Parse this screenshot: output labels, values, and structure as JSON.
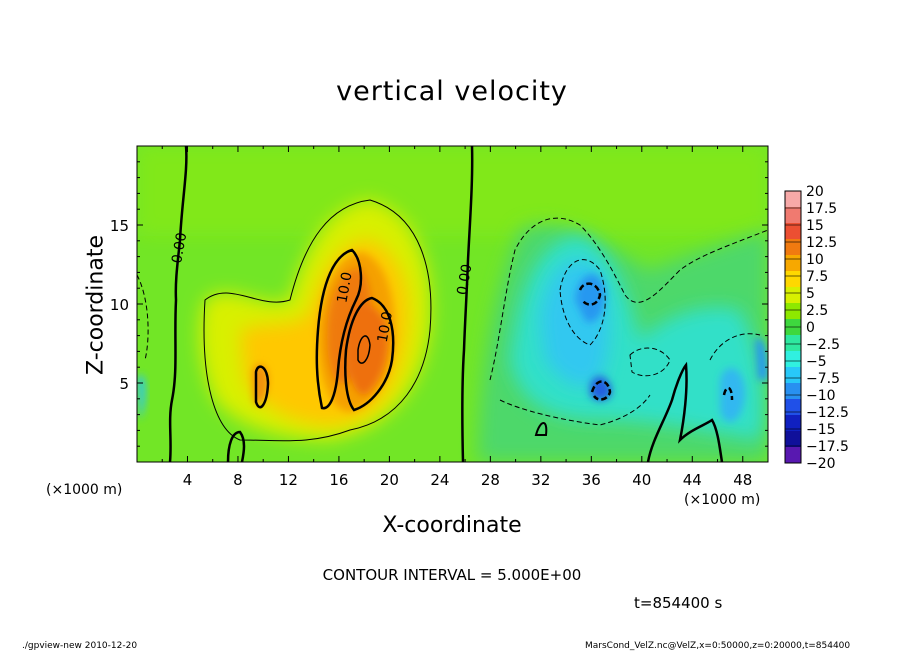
{
  "chart_data": {
    "type": "heatmap",
    "title": "vertical velocity",
    "xlabel": "X-coordinate",
    "ylabel": "Z-coordinate",
    "x_unit_left": "(×1000 m)",
    "x_unit_right": "(×1000 m)",
    "xlim": [
      0,
      50
    ],
    "ylim": [
      0,
      20
    ],
    "x_ticks": [
      {
        "value": 4,
        "label": "4"
      },
      {
        "value": 8,
        "label": "8"
      },
      {
        "value": 12,
        "label": "12"
      },
      {
        "value": 16,
        "label": "16"
      },
      {
        "value": 20,
        "label": "20"
      },
      {
        "value": 24,
        "label": "24"
      },
      {
        "value": 28,
        "label": "28"
      },
      {
        "value": 32,
        "label": "32"
      },
      {
        "value": 36,
        "label": "36"
      },
      {
        "value": 40,
        "label": "40"
      },
      {
        "value": 44,
        "label": "44"
      },
      {
        "value": 48,
        "label": "48"
      }
    ],
    "y_ticks": [
      {
        "value": 5,
        "label": "5"
      },
      {
        "value": 10,
        "label": "10"
      },
      {
        "value": 15,
        "label": "15"
      }
    ],
    "colorbar": {
      "levels": [
        20,
        17.5,
        15,
        12.5,
        10,
        7.5,
        5,
        2.5,
        0,
        -2.5,
        -5,
        -7.5,
        -10,
        -12.5,
        -15,
        -17.5,
        -20
      ],
      "labels": [
        "20",
        "17.5",
        "15",
        "12.5",
        "10",
        "7.5",
        "5",
        "2.5",
        "0",
        "−2.5",
        "−5",
        "−7.5",
        "−10",
        "−12.5",
        "−15",
        "−17.5",
        "−20"
      ],
      "colors": [
        "#f7a9a8",
        "#f07a70",
        "#ec4f32",
        "#f07a10",
        "#f7a800",
        "#ffd800",
        "#d8f000",
        "#8ee800",
        "#3ed83e",
        "#2ee8a0",
        "#30f0e0",
        "#28c8f8",
        "#2890f0",
        "#2050e8",
        "#1020c0",
        "#10109a",
        "#5818b0"
      ]
    },
    "contour_labels": [
      {
        "text": "0.00",
        "x": 3.7,
        "z": 13.5
      },
      {
        "text": "0.00",
        "x": 26.3,
        "z": 11.5
      },
      {
        "text": "10.0",
        "x": 16.8,
        "z": 11.0
      },
      {
        "text": "10.0",
        "x": 20.0,
        "z": 8.5
      }
    ],
    "cells": [
      {
        "x": 10,
        "z": 5.0,
        "v": 7.5
      },
      {
        "x": 15,
        "z": 8.0,
        "v": 10
      },
      {
        "x": 18,
        "z": 8.0,
        "v": 12.5
      },
      {
        "x": 36,
        "z": 11.0,
        "v": -7.5
      },
      {
        "x": 37,
        "z": 4.5,
        "v": -10
      },
      {
        "x": 47,
        "z": 3.5,
        "v": -10
      }
    ]
  },
  "annotations": {
    "contour_interval": "CONTOUR INTERVAL = 5.000E+00",
    "time": "t=854400 s"
  },
  "footer": {
    "left": "./gpview-new 2010-12-20",
    "right": "MarsCond_VelZ.nc@VelZ,x=0:50000,z=0:20000,t=854400"
  }
}
